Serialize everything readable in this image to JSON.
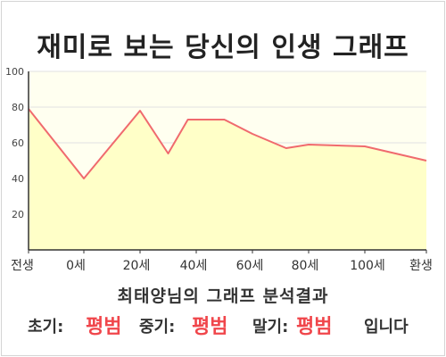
{
  "title": "재미로 보는 당신의 인생 그래프",
  "summary": {
    "heading": "최태양님의 그래프 분석결과",
    "early_label": "초기:",
    "early_value": "평범",
    "middle_label": "중기:",
    "middle_value": "평범",
    "late_label": "말기:",
    "late_value": "평범",
    "ending": "입니다"
  },
  "colors": {
    "accent": "#f0464b",
    "line": "#f06a6e",
    "fill": "#ffffc8",
    "plot_bg": "#fffff0",
    "grid": "#e2e2e2",
    "axis": "#333333"
  },
  "chart_data": {
    "type": "area",
    "title": "재미로 보는 당신의 인생 그래프",
    "xlabel": "",
    "ylabel": "",
    "x_tick_labels": [
      "전생",
      "0세",
      "20세",
      "40세",
      "60세",
      "80세",
      "100세",
      "환생"
    ],
    "y_ticks": [
      20,
      40,
      60,
      80,
      100
    ],
    "ylim": [
      0,
      100
    ],
    "grid": true,
    "legend": false,
    "series": [
      {
        "points": [
          {
            "x": "전생",
            "y": 79
          },
          {
            "x": 0,
            "y": 40
          },
          {
            "x": 20,
            "y": 78
          },
          {
            "x": 30,
            "y": 54
          },
          {
            "x": 37,
            "y": 73
          },
          {
            "x": 50,
            "y": 73
          },
          {
            "x": 60,
            "y": 65
          },
          {
            "x": 72,
            "y": 57
          },
          {
            "x": 80,
            "y": 59
          },
          {
            "x": 100,
            "y": 58
          },
          {
            "x": "환생",
            "y": 50
          }
        ]
      }
    ]
  }
}
